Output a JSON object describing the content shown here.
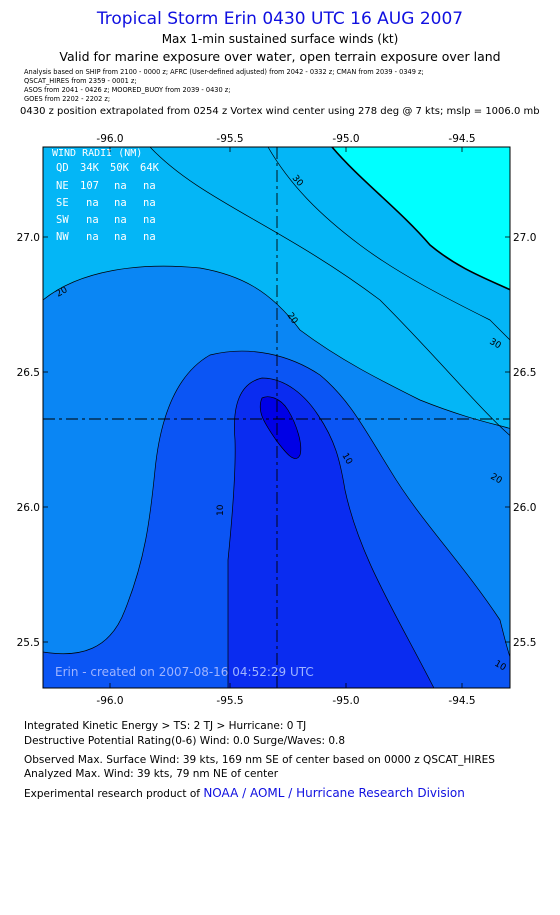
{
  "header": {
    "title": "Tropical Storm Erin 0430 UTC 16 AUG 2007",
    "subtitle1": "Max 1-min sustained surface winds (kt)",
    "subtitle2": "Valid for marine exposure over water, open terrain exposure over land",
    "analysis_lines": [
      "Analysis based on  SHIP from 2100 - 0000 z;  AFRC (User-defined adjusted) from 2042 - 0332 z;  CMAN from 2039 - 0349 z;",
      "QSCAT_HIRES from 2359 - 0001 z;",
      "ASOS from 2041 - 0426 z;   MOORED_BUOY from 2039 - 0430 z;",
      "GOES from 2202 - 2202 z;"
    ],
    "position_line": "0430 z position extrapolated from 0254 z Vortex wind center using 278 deg @ 7 kts; mslp = 1006.0 mb"
  },
  "map": {
    "x_ticks": [
      "-96.0",
      "-95.5",
      "-95.0",
      "-94.5"
    ],
    "y_ticks": [
      "27.0",
      "26.5",
      "26.0",
      "25.5"
    ],
    "contour_labels": [
      "30",
      "20",
      "20",
      "30",
      "10",
      "20",
      "10",
      "10"
    ],
    "wind_radii": {
      "title": "WIND RADII (NM)",
      "header": [
        "QD",
        "34K",
        "50K",
        "64K"
      ],
      "rows": [
        [
          "NE",
          "107",
          "na",
          "na"
        ],
        [
          "SE",
          "na",
          "na",
          "na"
        ],
        [
          "SW",
          "na",
          "na",
          "na"
        ],
        [
          "NW",
          "na",
          "na",
          "na"
        ]
      ]
    },
    "created": "Erin - created on 2007-08-16 04:52:29 UTC",
    "colors": {
      "band0": "#0000e6",
      "band1": "#0a2cf0",
      "band2": "#0b55f4",
      "band3": "#0a86f4",
      "band4": "#04b6f6",
      "band5": "#00ffff"
    }
  },
  "footer": {
    "ike": "Integrated Kinetic Energy > TS: 2 TJ   > Hurricane: 0 TJ",
    "dpr": "Destructive Potential Rating(0-6)   Wind: 0.0 Surge/Waves: 0.8",
    "observed": "Observed Max. Surface Wind: 39 kts, 169 nm SE of center based on 0000 z QSCAT_HIRES",
    "analyzed": "Analyzed Max. Wind: 39 kts, 79 nm NE of center",
    "credit_prefix": "Experimental research product of ",
    "credit_org": "NOAA / AOML / Hurricane Research Division"
  }
}
